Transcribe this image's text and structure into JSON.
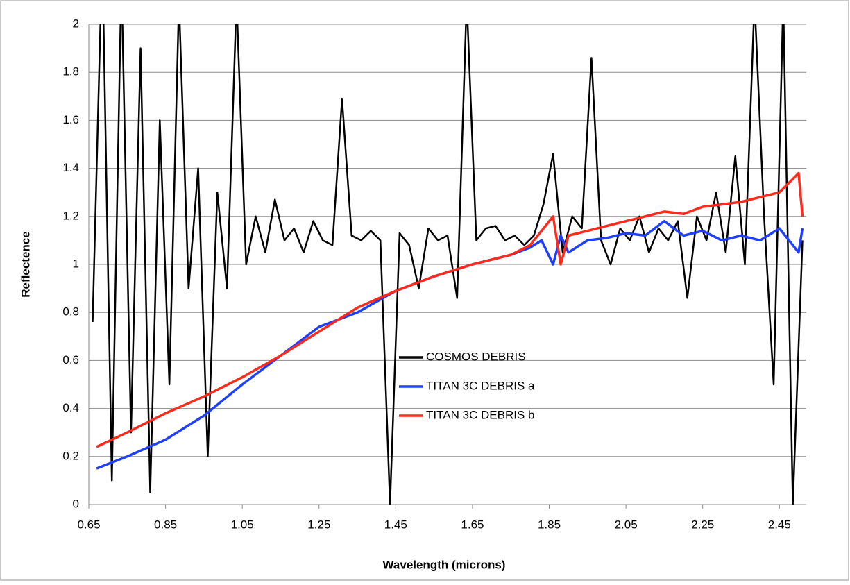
{
  "chart_data": {
    "type": "line",
    "x_label": "Wavelength (microns)",
    "y_label": "Reflectence",
    "xlim": [
      0.65,
      2.52
    ],
    "ylim": [
      0,
      2
    ],
    "xticks": [
      0.65,
      0.85,
      1.05,
      1.25,
      1.45,
      1.65,
      1.85,
      2.05,
      2.25,
      2.45
    ],
    "yticks": [
      0,
      0.2,
      0.4,
      0.6,
      0.8,
      1,
      1.2,
      1.4,
      1.6,
      1.8,
      2
    ],
    "grid": true,
    "series": [
      {
        "name": "COSMOS DEBRIS",
        "color": "#000000",
        "x": [
          0.66,
          0.685,
          0.71,
          0.735,
          0.76,
          0.785,
          0.81,
          0.835,
          0.86,
          0.885,
          0.91,
          0.935,
          0.96,
          0.985,
          1.01,
          1.035,
          1.06,
          1.085,
          1.11,
          1.135,
          1.16,
          1.185,
          1.21,
          1.235,
          1.26,
          1.285,
          1.31,
          1.335,
          1.36,
          1.385,
          1.41,
          1.435,
          1.46,
          1.485,
          1.51,
          1.535,
          1.56,
          1.585,
          1.61,
          1.635,
          1.66,
          1.685,
          1.71,
          1.735,
          1.76,
          1.785,
          1.81,
          1.835,
          1.86,
          1.885,
          1.91,
          1.935,
          1.96,
          1.985,
          2.01,
          2.035,
          2.06,
          2.085,
          2.11,
          2.135,
          2.16,
          2.185,
          2.21,
          2.235,
          2.26,
          2.285,
          2.31,
          2.335,
          2.36,
          2.385,
          2.41,
          2.435,
          2.46,
          2.485,
          2.51
        ],
        "values": [
          0.76,
          2.3,
          0.1,
          2.2,
          0.3,
          1.9,
          0.05,
          1.6,
          0.5,
          2.1,
          0.9,
          1.4,
          0.2,
          1.3,
          0.9,
          2.1,
          1.0,
          1.2,
          1.05,
          1.27,
          1.1,
          1.15,
          1.05,
          1.18,
          1.1,
          1.08,
          1.69,
          1.12,
          1.1,
          1.14,
          1.1,
          0.0,
          1.13,
          1.08,
          0.9,
          1.15,
          1.1,
          1.12,
          0.86,
          2.1,
          1.1,
          1.15,
          1.16,
          1.1,
          1.12,
          1.08,
          1.12,
          1.25,
          1.46,
          1.05,
          1.2,
          1.15,
          1.86,
          1.1,
          1.0,
          1.15,
          1.1,
          1.2,
          1.05,
          1.15,
          1.1,
          1.18,
          0.86,
          1.2,
          1.1,
          1.3,
          1.05,
          1.45,
          1.0,
          2.1,
          1.2,
          0.5,
          2.1,
          0.0,
          1.1
        ]
      },
      {
        "name": "TITAN 3C DEBRIS a",
        "color": "#1f3fff",
        "x": [
          0.67,
          0.75,
          0.85,
          0.95,
          1.05,
          1.15,
          1.25,
          1.35,
          1.45,
          1.55,
          1.65,
          1.75,
          1.8,
          1.83,
          1.86,
          1.88,
          1.9,
          1.95,
          2.0,
          2.05,
          2.1,
          2.15,
          2.2,
          2.25,
          2.3,
          2.35,
          2.4,
          2.45,
          2.5,
          2.51
        ],
        "values": [
          0.15,
          0.2,
          0.27,
          0.37,
          0.5,
          0.62,
          0.74,
          0.8,
          0.89,
          0.95,
          1.0,
          1.04,
          1.07,
          1.1,
          1.0,
          1.12,
          1.05,
          1.1,
          1.11,
          1.13,
          1.12,
          1.18,
          1.12,
          1.14,
          1.1,
          1.12,
          1.1,
          1.15,
          1.05,
          1.15
        ]
      },
      {
        "name": "TITAN 3C DEBRIS b",
        "color": "#ff2a1a",
        "x": [
          0.67,
          0.75,
          0.85,
          0.95,
          1.05,
          1.15,
          1.25,
          1.35,
          1.45,
          1.55,
          1.65,
          1.75,
          1.8,
          1.83,
          1.86,
          1.88,
          1.9,
          1.95,
          2.0,
          2.05,
          2.1,
          2.15,
          2.2,
          2.25,
          2.3,
          2.35,
          2.4,
          2.45,
          2.5,
          2.51
        ],
        "values": [
          0.24,
          0.3,
          0.38,
          0.45,
          0.53,
          0.62,
          0.72,
          0.82,
          0.89,
          0.95,
          1.0,
          1.04,
          1.08,
          1.14,
          1.2,
          1.0,
          1.12,
          1.14,
          1.16,
          1.18,
          1.2,
          1.22,
          1.21,
          1.24,
          1.25,
          1.26,
          1.28,
          1.3,
          1.38,
          1.2
        ]
      }
    ]
  }
}
